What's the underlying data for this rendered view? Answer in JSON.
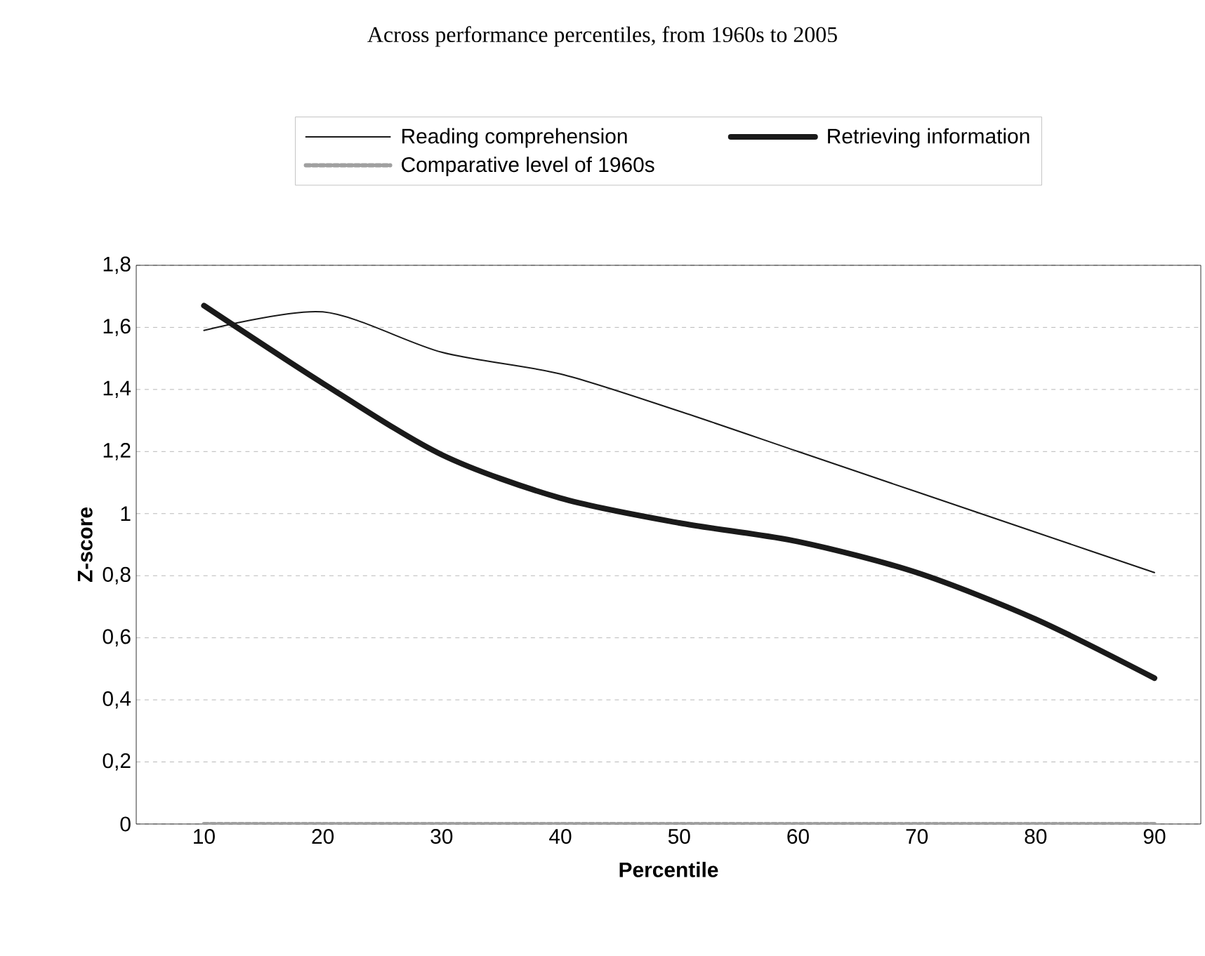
{
  "chart_data": {
    "type": "line",
    "title": "Across performance percentiles, from 1960s to 2005",
    "xlabel": "Percentile",
    "ylabel": "Z-score",
    "categories": [
      "10",
      "20",
      "30",
      "40",
      "50",
      "60",
      "70",
      "80",
      "90"
    ],
    "series": [
      {
        "name": "Reading comprehension",
        "color": "#1a1a1a",
        "values": [
          1.59,
          1.65,
          1.52,
          1.45,
          1.33,
          1.2,
          1.07,
          0.94,
          0.81
        ]
      },
      {
        "name": "Retrieving information",
        "color": "#1a1a1a",
        "values": [
          1.67,
          1.42,
          1.19,
          1.05,
          0.97,
          0.91,
          0.81,
          0.66,
          0.47
        ]
      },
      {
        "name": "Comparative level of 1960s",
        "color": "#a0a0a0",
        "line_style": "dotted",
        "values": [
          0,
          0,
          0,
          0,
          0,
          0,
          0,
          0,
          0
        ]
      }
    ],
    "ylim": [
      0,
      1.8
    ],
    "yticks": [
      0,
      {
        "value": 0.2,
        "label": "0,2"
      },
      {
        "value": 0.4,
        "label": "0,4"
      },
      {
        "value": 0.6,
        "label": "0,6"
      },
      {
        "value": 0.8,
        "label": "0,8"
      },
      1,
      {
        "value": 1.2,
        "label": "1,2"
      },
      {
        "value": 1.4,
        "label": "1,4"
      },
      {
        "value": 1.6,
        "label": "1,6"
      },
      {
        "value": 1.8,
        "label": "1,8"
      }
    ],
    "grid": "y",
    "legend": "top",
    "marker": "none",
    "line_style": "solid"
  }
}
